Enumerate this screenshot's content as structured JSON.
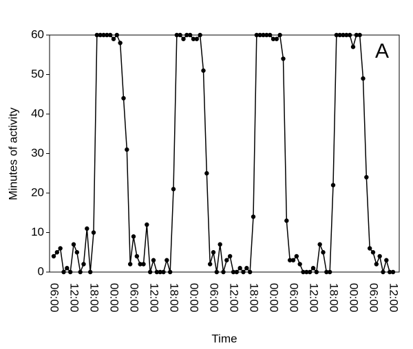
{
  "chart_data": {
    "type": "line",
    "y_label": "Minutes of activity",
    "x_label": "Time",
    "annotation": "A",
    "categories": [
      "06:00",
      null,
      null,
      null,
      null,
      null,
      "12:00",
      null,
      null,
      null,
      null,
      null,
      "18:00",
      null,
      null,
      null,
      null,
      null,
      "00:00",
      null,
      null,
      null,
      null,
      null,
      "06:00",
      null,
      null,
      null,
      null,
      null,
      "12:00",
      null,
      null,
      null,
      null,
      null,
      "18:00",
      null,
      null,
      null,
      null,
      null,
      "00:00",
      null,
      null,
      null,
      null,
      null,
      "06:00",
      null,
      null,
      null,
      null,
      null,
      "12:00",
      null,
      null,
      null,
      null,
      null,
      "18:00",
      null,
      null,
      null,
      null,
      null,
      "00:00",
      null,
      null,
      null,
      null,
      null,
      "06:00",
      null,
      null,
      null,
      null,
      null,
      "12:00",
      null,
      null,
      null,
      null,
      null,
      "18:00",
      null,
      null,
      null,
      null,
      null,
      "00:00",
      null,
      null,
      null,
      null,
      null,
      "06:00",
      null,
      null,
      null,
      null,
      null,
      "12:00"
    ],
    "values": [
      4,
      5,
      6,
      0,
      1,
      0,
      7,
      5,
      0,
      2,
      11,
      0,
      10,
      60,
      60,
      60,
      60,
      60,
      59,
      60,
      58,
      44,
      31,
      2,
      9,
      4,
      2,
      2,
      12,
      0,
      3,
      0,
      0,
      0,
      3,
      0,
      21,
      60,
      60,
      59,
      60,
      60,
      59,
      59,
      60,
      51,
      25,
      2,
      5,
      0,
      7,
      0,
      3,
      4,
      0,
      0,
      1,
      0,
      1,
      0,
      14,
      60,
      60,
      60,
      60,
      60,
      59,
      59,
      60,
      54,
      13,
      3,
      3,
      4,
      2,
      0,
      0,
      0,
      1,
      0,
      7,
      5,
      0,
      0,
      22,
      60,
      60,
      60,
      60,
      60,
      57,
      60,
      60,
      49,
      24,
      6,
      5,
      2,
      4,
      0,
      3,
      0,
      0
    ],
    "color": "#000000",
    "ylim": [
      0,
      60
    ],
    "yticks": [
      0,
      10,
      20,
      30,
      40,
      50,
      60
    ]
  }
}
